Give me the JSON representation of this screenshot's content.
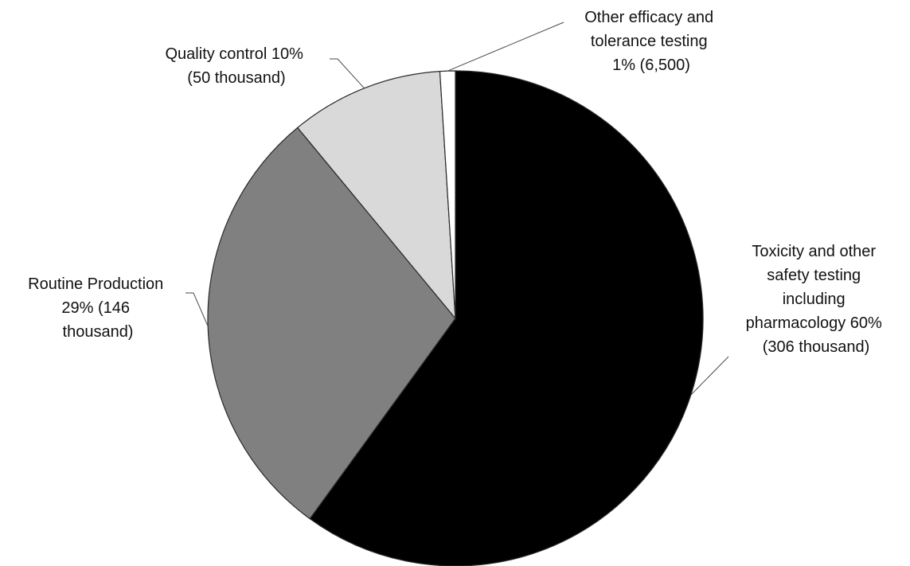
{
  "chart_data": {
    "type": "pie",
    "title": "",
    "legend": "none",
    "start_angle_deg": 0,
    "direction": "clockwise",
    "slices": [
      {
        "name": "Toxicity and other safety testing including pharmacology",
        "percent": 60,
        "count_thousand": 306,
        "color": "#000000",
        "label_lines": [
          "Toxicity and other",
          "safety testing",
          "including",
          "pharmacology 60%",
          "(306 thousand)"
        ]
      },
      {
        "name": "Routine Production",
        "percent": 29,
        "count_thousand": 146,
        "color": "#808080",
        "label_lines": [
          "Routine Production",
          "29% (146",
          "thousand)"
        ]
      },
      {
        "name": "Quality control",
        "percent": 10,
        "count_thousand": 50,
        "color": "#d9d9d9",
        "label_lines": [
          "Quality control 10%",
          "(50 thousand)"
        ]
      },
      {
        "name": "Other efficacy and tolerance testing",
        "percent": 1,
        "count": 6500,
        "color": "#ffffff",
        "label_lines": [
          "Other efficacy and",
          "tolerance testing",
          "1% (6,500)"
        ]
      }
    ]
  }
}
